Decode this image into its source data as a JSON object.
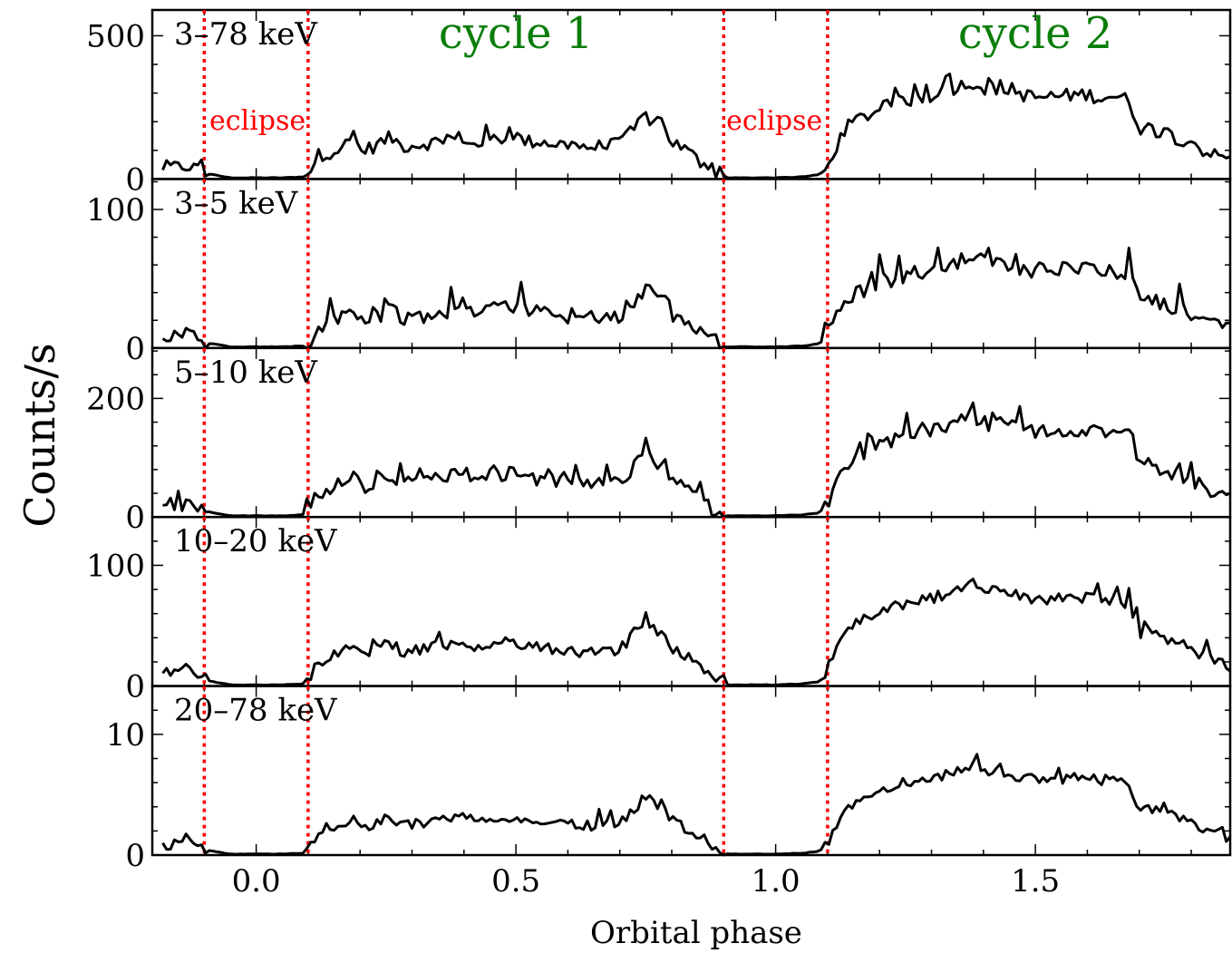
{
  "chart_data": {
    "type": "line",
    "xlabel": "Orbital phase",
    "ylabel": "Counts/s",
    "xlim": [
      -0.2,
      1.875
    ],
    "x_ticks": [
      {
        "value": 0.0,
        "label": "0.0"
      },
      {
        "value": 0.5,
        "label": "0.5"
      },
      {
        "value": 1.0,
        "label": "1.0"
      },
      {
        "value": 1.5,
        "label": "1.5"
      }
    ],
    "eclipse_lines": [
      -0.1,
      0.1,
      0.9,
      1.1
    ],
    "eclipse_label": "eclipse",
    "eclipse_label_positions": [
      {
        "x": -0.09,
        "y_fraction": 0.7
      },
      {
        "x": 0.905,
        "y_fraction": 0.7
      }
    ],
    "cycle_labels": [
      {
        "text": "cycle 1",
        "x": 0.5
      },
      {
        "text": "cycle 2",
        "x": 1.5
      }
    ],
    "line_color": "#000000",
    "eclipse_color": "#ff0000",
    "cycle_color": "#0a7d0a",
    "panels": [
      {
        "label": "3–78 keV",
        "ylim": [
          0,
          590
        ],
        "y_ticks": [
          {
            "value": 0,
            "label": "0"
          },
          {
            "value": 500,
            "label": "500"
          }
        ],
        "shape_scale": 320,
        "base_noise": 40
      },
      {
        "label": "3–5 keV",
        "ylim": [
          0,
          122
        ],
        "y_ticks": [
          {
            "value": 0,
            "label": "0"
          },
          {
            "value": 100,
            "label": "100"
          }
        ],
        "shape_scale": 62,
        "base_noise": 10
      },
      {
        "label": "5–10 keV",
        "ylim": [
          0,
          285
        ],
        "y_ticks": [
          {
            "value": 0,
            "label": "0"
          },
          {
            "value": 200,
            "label": "200"
          }
        ],
        "shape_scale": 160,
        "base_noise": 20
      },
      {
        "label": "10–20 keV",
        "ylim": [
          0,
          140
        ],
        "y_ticks": [
          {
            "value": 0,
            "label": "0"
          },
          {
            "value": 100,
            "label": "100"
          }
        ],
        "shape_scale": 80,
        "base_noise": 8
      },
      {
        "label": "20–78 keV",
        "ylim": [
          0,
          14
        ],
        "y_ticks": [
          {
            "value": 0,
            "label": "0"
          },
          {
            "value": 10,
            "label": "10"
          }
        ],
        "shape_scale": 7,
        "base_noise": 0.7
      }
    ],
    "profile": {
      "x": [
        -0.18,
        -0.15,
        -0.13,
        -0.1,
        -0.05,
        0.0,
        0.05,
        0.09,
        0.1,
        0.12,
        0.15,
        0.19,
        0.2,
        0.22,
        0.26,
        0.28,
        0.3,
        0.35,
        0.4,
        0.42,
        0.45,
        0.5,
        0.52,
        0.55,
        0.6,
        0.65,
        0.7,
        0.73,
        0.75,
        0.77,
        0.78,
        0.8,
        0.83,
        0.87,
        0.9,
        0.95,
        1.0,
        1.05,
        1.08,
        1.1,
        1.12,
        1.15,
        1.2,
        1.25,
        1.3,
        1.35,
        1.38,
        1.4,
        1.45,
        1.5,
        1.55,
        1.6,
        1.62,
        1.65,
        1.68,
        1.7,
        1.72,
        1.75,
        1.8,
        1.83,
        1.875
      ],
      "y_rel": [
        0.12,
        0.12,
        0.14,
        0.06,
        0.01,
        0.01,
        0.01,
        0.02,
        0.06,
        0.25,
        0.3,
        0.42,
        0.3,
        0.33,
        0.45,
        0.35,
        0.36,
        0.4,
        0.45,
        0.35,
        0.42,
        0.46,
        0.4,
        0.4,
        0.36,
        0.34,
        0.37,
        0.55,
        0.7,
        0.55,
        0.62,
        0.4,
        0.3,
        0.1,
        0.01,
        0.01,
        0.01,
        0.02,
        0.04,
        0.1,
        0.4,
        0.62,
        0.75,
        0.85,
        0.9,
        1.0,
        1.05,
        0.98,
        0.95,
        0.88,
        0.9,
        0.92,
        0.88,
        0.9,
        0.85,
        0.55,
        0.55,
        0.48,
        0.4,
        0.28,
        0.2
      ]
    }
  }
}
